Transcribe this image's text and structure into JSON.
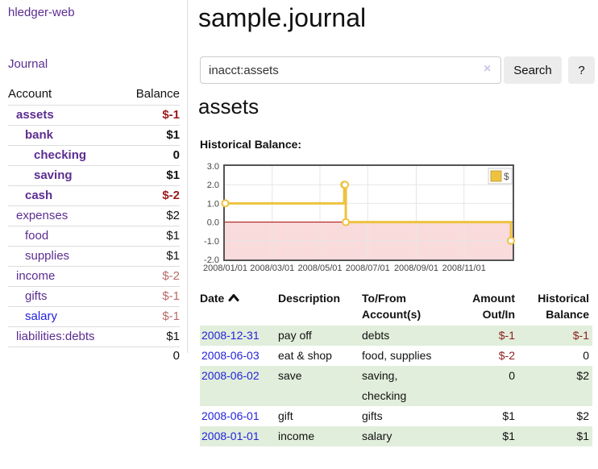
{
  "app": {
    "brand": "hledger-web",
    "nav": [
      {
        "label": "Journal"
      }
    ]
  },
  "sidebar": {
    "col_account": "Account",
    "col_balance": "Balance",
    "accounts": [
      {
        "name": "assets",
        "balance": "$-1"
      },
      {
        "name": "bank",
        "balance": "$1"
      },
      {
        "name": "checking",
        "balance": "0"
      },
      {
        "name": "saving",
        "balance": "$1"
      },
      {
        "name": "cash",
        "balance": "$-2"
      },
      {
        "name": "expenses",
        "balance": "$2"
      },
      {
        "name": "food",
        "balance": "$1"
      },
      {
        "name": "supplies",
        "balance": "$1"
      },
      {
        "name": "income",
        "balance": "$-2"
      },
      {
        "name": "gifts",
        "balance": "$-1"
      },
      {
        "name": "salary",
        "balance": "$-1"
      },
      {
        "name": "liabilities:debts",
        "balance": "$1"
      }
    ],
    "total": "0"
  },
  "main": {
    "title": "sample.journal",
    "search": {
      "value": "inacct:assets",
      "clear_icon": "×",
      "search_button": "Search",
      "help_button": "?"
    },
    "account_heading": "assets",
    "chart_heading": "Historical Balance:"
  },
  "chart_data": {
    "type": "line",
    "title": "Historical Balance",
    "series": [
      {
        "name": "$",
        "color": "#edc240",
        "step": true,
        "points": [
          [
            "2008-01-01",
            1
          ],
          [
            "2008-06-01",
            2
          ],
          [
            "2008-06-02",
            2
          ],
          [
            "2008-06-03",
            0
          ],
          [
            "2008-12-31",
            -1
          ]
        ]
      }
    ],
    "x_range": [
      "2008-01-01",
      "2008-12-31"
    ],
    "ylim": [
      -2,
      3
    ],
    "yticks": [
      3.0,
      2.0,
      1.0,
      0.0,
      -1.0,
      -2.0
    ],
    "xticks": [
      "2008/01/01",
      "2008/03/01",
      "2008/05/01",
      "2008/07/01",
      "2008/09/01",
      "2008/11/01"
    ],
    "grid": true,
    "legend": [
      "$"
    ],
    "legend_position": "top-right",
    "negative_region_color": "#fadbdb",
    "zero_line_color": "#a40000",
    "border_color": "#545454",
    "grid_color": "#e6e6e6"
  },
  "register": {
    "headers": {
      "date": "Date",
      "description": "Description",
      "accounts": "To/From\nAccount(s)",
      "amount": "Amount\nOut/In",
      "balance": "Historical\nBalance"
    },
    "rows": [
      {
        "date": "2008-12-31",
        "description": "pay off",
        "accounts": "debts",
        "amount": "$-1",
        "balance": "$-1"
      },
      {
        "date": "2008-06-03",
        "description": "eat & shop",
        "accounts": "food, supplies",
        "amount": "$-2",
        "balance": "0"
      },
      {
        "date": "2008-06-02",
        "description": "save",
        "accounts": "saving,\nchecking",
        "amount": "0",
        "balance": "$2"
      },
      {
        "date": "2008-06-01",
        "description": "gift",
        "accounts": "gifts",
        "amount": "$1",
        "balance": "$2"
      },
      {
        "date": "2008-01-01",
        "description": "income",
        "accounts": "salary",
        "amount": "$1",
        "balance": "$1"
      }
    ]
  }
}
